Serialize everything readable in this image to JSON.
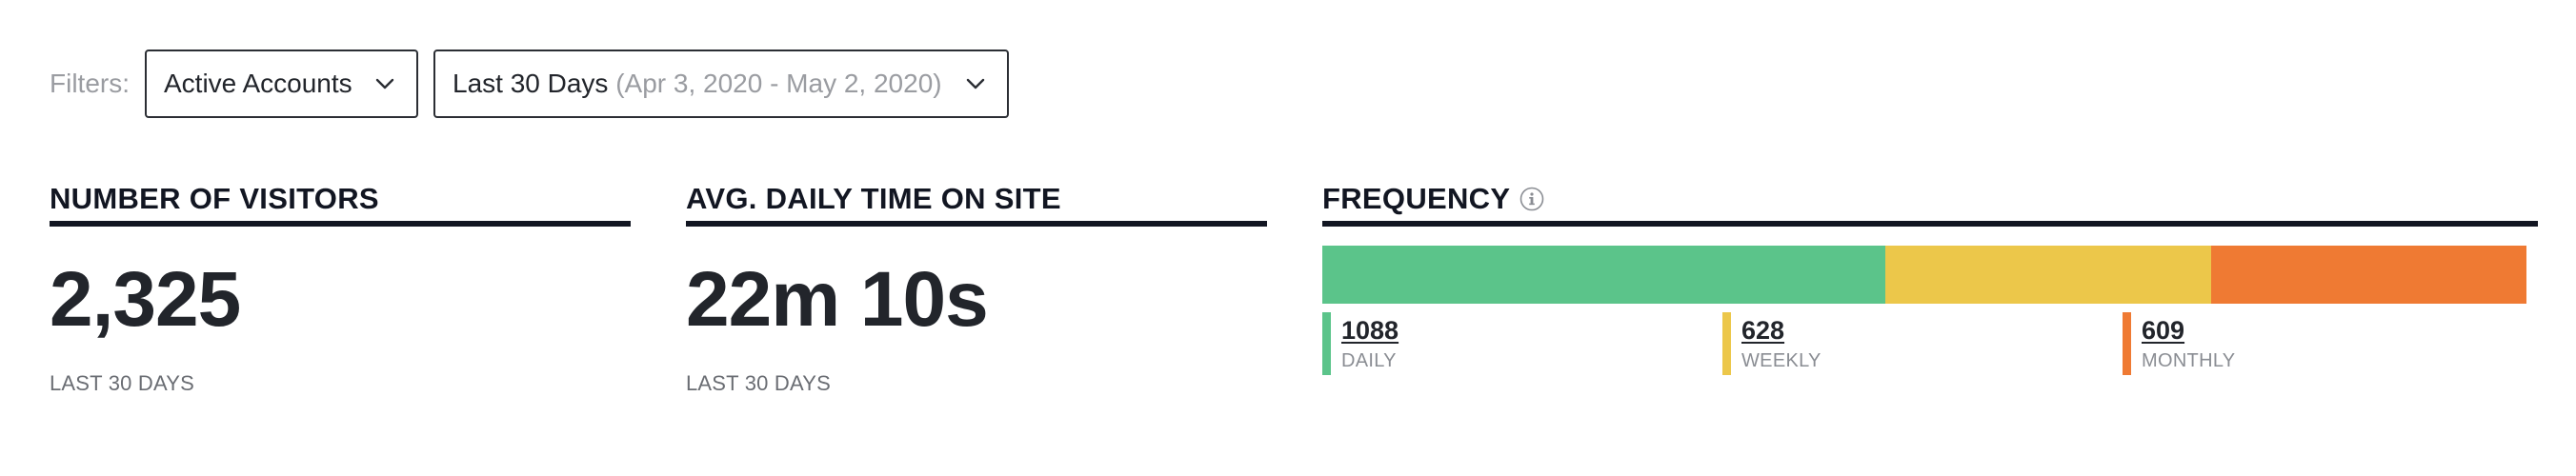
{
  "filters": {
    "label": "Filters:",
    "account_filter": {
      "value": "Active Accounts",
      "icon": "chevron-down-icon"
    },
    "date_filter": {
      "value": "Last 30 Days",
      "range": "(Apr 3, 2020 - May 2, 2020)",
      "icon": "chevron-down-icon"
    }
  },
  "visitors": {
    "title": "NUMBER OF VISITORS",
    "value": "2,325",
    "caption": "LAST 30 DAYS"
  },
  "time_on_site": {
    "title": "AVG. DAILY TIME ON SITE",
    "value": "22m 10s",
    "caption": "LAST 30 DAYS"
  },
  "frequency": {
    "title": "FREQUENCY",
    "info_icon": "info-icon",
    "segments": [
      {
        "key": "daily",
        "value": "1088",
        "label": "DAILY",
        "color": "#5bc48a"
      },
      {
        "key": "weekly",
        "value": "628",
        "label": "WEEKLY",
        "color": "#ecc74a"
      },
      {
        "key": "monthly",
        "value": "609",
        "label": "MONTHLY",
        "color": "#ef7a33"
      }
    ]
  },
  "colors": {
    "heading": "#121622",
    "text": "#22252b",
    "muted": "#9a9ca1"
  }
}
